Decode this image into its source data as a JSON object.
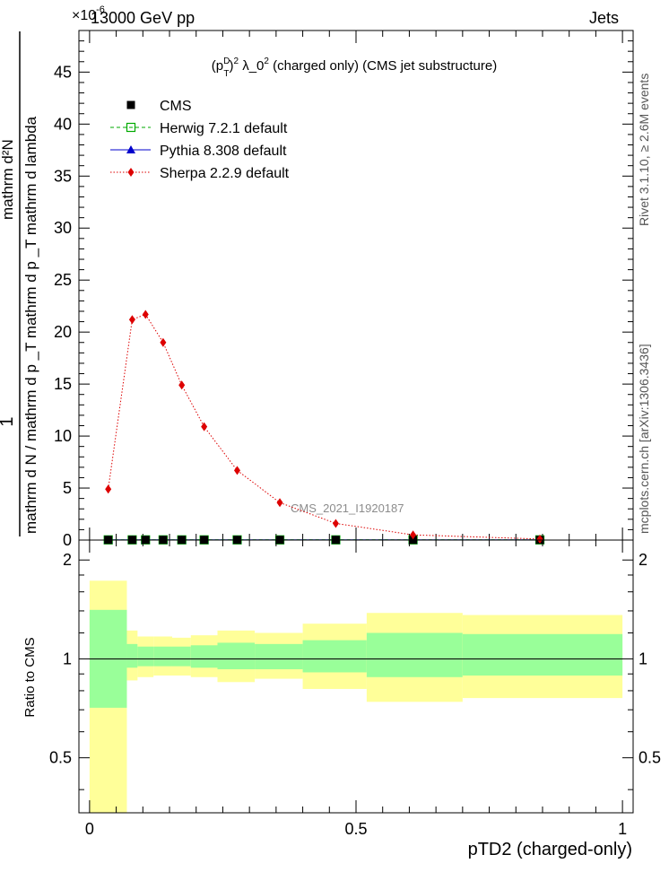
{
  "header": {
    "energy_label": "13000 GeV pp",
    "exponent_label": "×10",
    "exponent_power": "-6",
    "category_label": "Jets"
  },
  "side_labels": {
    "right_top": "Rivet 3.1.10, ≥ 2.6M events",
    "right_bottom": "mcplots.cern.ch [arXiv:1306.3436]"
  },
  "watermark": "CMS_2021_I1920187",
  "chart_data": [
    {
      "type": "line",
      "title_parts": {
        "pre": "(p",
        "sup1": "D",
        "sub1": "T",
        "post1": ")",
        "sup2": "2",
        "mid": " λ_0",
        "sup3": "2",
        "post2": " (charged only) (CMS jet substructure)"
      },
      "ylabel_numerator": "1",
      "ylabel_denominator": "mathrm d N / mathrm d p  _T mathrm d p  _T mathrm d lambda",
      "ylabel_top": "mathrm d²N",
      "xlim": [
        -0.02,
        1.02
      ],
      "ylim": [
        0,
        49
      ],
      "y_ticks": [
        0,
        5,
        10,
        15,
        20,
        25,
        30,
        35,
        40,
        45
      ],
      "y_tick_labels": [
        "0",
        "5",
        "10",
        "15",
        "20",
        "25",
        "30",
        "35",
        "40",
        "45"
      ],
      "legend": [
        {
          "name": "CMS",
          "color": "#000000",
          "marker": "square"
        },
        {
          "name": "Herwig 7.2.1 default",
          "color": "#00aa00",
          "marker": "open-square"
        },
        {
          "name": "Pythia 8.308 default",
          "color": "#0000cc",
          "marker": "triangle"
        },
        {
          "name": "Sherpa 2.2.9 default",
          "color": "#dd0000",
          "marker": "diamond"
        }
      ],
      "series": [
        {
          "name": "CMS",
          "x": [
            0.035,
            0.08,
            0.105,
            0.138,
            0.173,
            0.215,
            0.277,
            0.357,
            0.462,
            0.607,
            0.845
          ],
          "values": [
            0.02,
            0.02,
            0.02,
            0.02,
            0.02,
            0.02,
            0.02,
            0.02,
            0.02,
            0.02,
            0.02
          ]
        },
        {
          "name": "Herwig 7.2.1 default",
          "x": [
            0.035,
            0.08,
            0.105,
            0.138,
            0.173,
            0.215,
            0.277,
            0.357,
            0.462,
            0.607,
            0.845
          ],
          "values": [
            0.02,
            0.02,
            0.02,
            0.02,
            0.02,
            0.02,
            0.02,
            0.02,
            0.02,
            0.02,
            0.02
          ]
        },
        {
          "name": "Pythia 8.308 default",
          "x": [
            0.035,
            0.08,
            0.105,
            0.138,
            0.173,
            0.215,
            0.277,
            0.357,
            0.462,
            0.607,
            0.845
          ],
          "values": [
            0.02,
            0.02,
            0.02,
            0.02,
            0.02,
            0.02,
            0.02,
            0.02,
            0.02,
            0.02,
            0.02
          ]
        },
        {
          "name": "Sherpa 2.2.9 default",
          "x": [
            0.035,
            0.08,
            0.105,
            0.138,
            0.173,
            0.215,
            0.277,
            0.357,
            0.462,
            0.607,
            0.845
          ],
          "values": [
            4.9,
            21.2,
            21.7,
            19.0,
            14.9,
            10.9,
            6.7,
            3.6,
            1.6,
            0.5,
            0.1
          ]
        }
      ]
    },
    {
      "type": "area",
      "ylabel": "Ratio to CMS",
      "xlabel": "pTD2 (charged-only)",
      "xlim": [
        -0.02,
        1.02
      ],
      "ylim": [
        0.34,
        2.3
      ],
      "y_ticks": [
        0.5,
        1,
        2
      ],
      "y_tick_labels": [
        "0.5",
        "1",
        "2"
      ],
      "x_ticks": [
        0,
        0.5,
        1
      ],
      "x_tick_labels": [
        "0",
        "0.5",
        "1"
      ],
      "reference_line": 1,
      "bins": [
        {
          "x_low": 0.0,
          "x_high": 0.07,
          "inner_low": 0.71,
          "inner_high": 1.41,
          "outer_low": 0.34,
          "outer_high": 1.73
        },
        {
          "x_low": 0.07,
          "x_high": 0.09,
          "inner_low": 0.94,
          "inner_high": 1.11,
          "outer_low": 0.86,
          "outer_high": 1.22
        },
        {
          "x_low": 0.09,
          "x_high": 0.12,
          "inner_low": 0.95,
          "inner_high": 1.09,
          "outer_low": 0.88,
          "outer_high": 1.17
        },
        {
          "x_low": 0.12,
          "x_high": 0.155,
          "inner_low": 0.95,
          "inner_high": 1.09,
          "outer_low": 0.89,
          "outer_high": 1.17
        },
        {
          "x_low": 0.155,
          "x_high": 0.19,
          "inner_low": 0.95,
          "inner_high": 1.09,
          "outer_low": 0.89,
          "outer_high": 1.16
        },
        {
          "x_low": 0.19,
          "x_high": 0.24,
          "inner_low": 0.94,
          "inner_high": 1.1,
          "outer_low": 0.88,
          "outer_high": 1.18
        },
        {
          "x_low": 0.24,
          "x_high": 0.31,
          "inner_low": 0.93,
          "inner_high": 1.12,
          "outer_low": 0.85,
          "outer_high": 1.22
        },
        {
          "x_low": 0.31,
          "x_high": 0.4,
          "inner_low": 0.93,
          "inner_high": 1.11,
          "outer_low": 0.87,
          "outer_high": 1.2
        },
        {
          "x_low": 0.4,
          "x_high": 0.52,
          "inner_low": 0.91,
          "inner_high": 1.14,
          "outer_low": 0.81,
          "outer_high": 1.28
        },
        {
          "x_low": 0.52,
          "x_high": 0.7,
          "inner_low": 0.88,
          "inner_high": 1.2,
          "outer_low": 0.74,
          "outer_high": 1.38
        },
        {
          "x_low": 0.7,
          "x_high": 1.0,
          "inner_low": 0.89,
          "inner_high": 1.19,
          "outer_low": 0.76,
          "outer_high": 1.36
        }
      ]
    }
  ]
}
